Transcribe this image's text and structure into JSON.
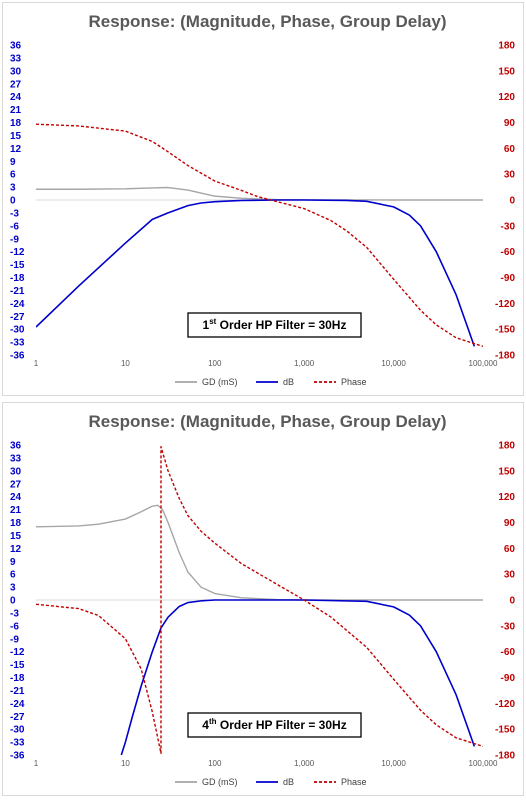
{
  "chart_data": [
    {
      "type": "line",
      "title": "Response: (Magnitude, Phase, Group Delay)",
      "annotation": {
        "prefix": "1",
        "sup": "st",
        "suffix": " Order HP Filter = 30Hz"
      },
      "x_scale": "log",
      "xlim": [
        1,
        100000
      ],
      "x_ticks": [
        1,
        10,
        100,
        1000,
        10000,
        100000
      ],
      "x_tick_labels": [
        "1",
        "10",
        "100",
        "1,000",
        "10,000",
        "100,000"
      ],
      "y_left_lim": [
        -36,
        36
      ],
      "y_left_ticks": [
        36,
        33,
        30,
        27,
        24,
        21,
        18,
        15,
        12,
        9,
        6,
        3,
        0,
        -3,
        -6,
        -9,
        -12,
        -15,
        -18,
        -21,
        -24,
        -27,
        -30,
        -33,
        -36
      ],
      "y_right_lim": [
        -180,
        180
      ],
      "y_right_ticks": [
        180,
        150,
        120,
        90,
        60,
        30,
        0,
        -30,
        -60,
        -90,
        -120,
        -150,
        -180
      ],
      "legend_position": "bottom",
      "series": [
        {
          "name": "GD (mS)",
          "axis": "left",
          "color": "#a6a6a6",
          "dash": "solid",
          "x": [
            1,
            3,
            10,
            20,
            30,
            50,
            70,
            100,
            200,
            500,
            1000,
            10000,
            100000
          ],
          "y": [
            2.5,
            2.5,
            2.6,
            2.8,
            2.9,
            2.3,
            1.6,
            0.9,
            0.4,
            0.1,
            0.05,
            0,
            0
          ]
        },
        {
          "name": "dB",
          "axis": "left",
          "color": "#0000cc",
          "dash": "solid",
          "x": [
            1,
            3,
            10,
            20,
            30,
            50,
            70,
            100,
            200,
            500,
            1000,
            3000,
            5000,
            10000,
            15000,
            20000,
            30000,
            50000,
            80000
          ],
          "y": [
            -29.5,
            -20,
            -10,
            -4.5,
            -3,
            -1.3,
            -0.7,
            -0.4,
            -0.1,
            0,
            0,
            -0.1,
            -0.3,
            -1.6,
            -3.5,
            -6,
            -12,
            -22,
            -34
          ]
        },
        {
          "name": "Phase",
          "axis": "right",
          "color": "#c00000",
          "dash": "dashed",
          "x": [
            1,
            3,
            10,
            20,
            30,
            50,
            100,
            200,
            300,
            500,
            1000,
            2000,
            3000,
            5000,
            10000,
            20000,
            30000,
            50000,
            100000
          ],
          "y": [
            88,
            86,
            80,
            68,
            56,
            40,
            22,
            11,
            4,
            -2,
            -10,
            -24,
            -36,
            -55,
            -92,
            -128,
            -145,
            -160,
            -170
          ]
        }
      ]
    },
    {
      "type": "line",
      "title": "Response: (Magnitude, Phase, Group Delay)",
      "annotation": {
        "prefix": "4",
        "sup": "th",
        "suffix": " Order HP Filter = 30Hz"
      },
      "x_scale": "log",
      "xlim": [
        1,
        100000
      ],
      "x_ticks": [
        1,
        10,
        100,
        1000,
        10000,
        100000
      ],
      "x_tick_labels": [
        "1",
        "10",
        "100",
        "1,000",
        "10,000",
        "100,000"
      ],
      "y_left_lim": [
        -36,
        36
      ],
      "y_left_ticks": [
        36,
        33,
        30,
        27,
        24,
        21,
        18,
        15,
        12,
        9,
        6,
        3,
        0,
        -3,
        -6,
        -9,
        -12,
        -15,
        -18,
        -21,
        -24,
        -27,
        -30,
        -33,
        -36
      ],
      "y_right_lim": [
        -180,
        180
      ],
      "y_right_ticks": [
        180,
        150,
        120,
        90,
        60,
        30,
        0,
        -30,
        -60,
        -90,
        -120,
        -150,
        -180
      ],
      "legend_position": "bottom",
      "series": [
        {
          "name": "GD (mS)",
          "axis": "left",
          "color": "#a6a6a6",
          "dash": "solid",
          "x": [
            1,
            3,
            5,
            10,
            15,
            20,
            23,
            26,
            30,
            40,
            50,
            70,
            100,
            200,
            500,
            1000,
            100000
          ],
          "y": [
            17,
            17.2,
            17.6,
            18.8,
            20.5,
            21.8,
            22,
            21,
            18,
            11,
            6.5,
            3,
            1.5,
            0.5,
            0.1,
            0,
            0
          ]
        },
        {
          "name": "dB",
          "axis": "left",
          "color": "#0000cc",
          "dash": "solid",
          "x": [
            9,
            10,
            12,
            15,
            20,
            25,
            30,
            40,
            50,
            70,
            100,
            200,
            1000,
            5000,
            10000,
            15000,
            20000,
            30000,
            50000,
            80000
          ],
          "y": [
            -36,
            -33,
            -27,
            -20,
            -12,
            -6.5,
            -4,
            -1.5,
            -0.6,
            -0.2,
            0,
            0,
            0,
            -0.3,
            -1.6,
            -3.5,
            -6,
            -12,
            -22,
            -34
          ]
        },
        {
          "name": "Phase",
          "axis": "right",
          "color": "#c00000",
          "dash": "dashed",
          "x": [
            1,
            3,
            5,
            10,
            15,
            20,
            25,
            25.01,
            30,
            40,
            50,
            70,
            100,
            200,
            500,
            1000,
            2000,
            5000,
            10000,
            20000,
            30000,
            50000,
            100000
          ],
          "y": [
            -5,
            -10,
            -18,
            -45,
            -80,
            -130,
            -178,
            178,
            150,
            118,
            98,
            80,
            66,
            42,
            18,
            0,
            -20,
            -55,
            -92,
            -128,
            -145,
            -160,
            -170
          ]
        }
      ]
    }
  ]
}
